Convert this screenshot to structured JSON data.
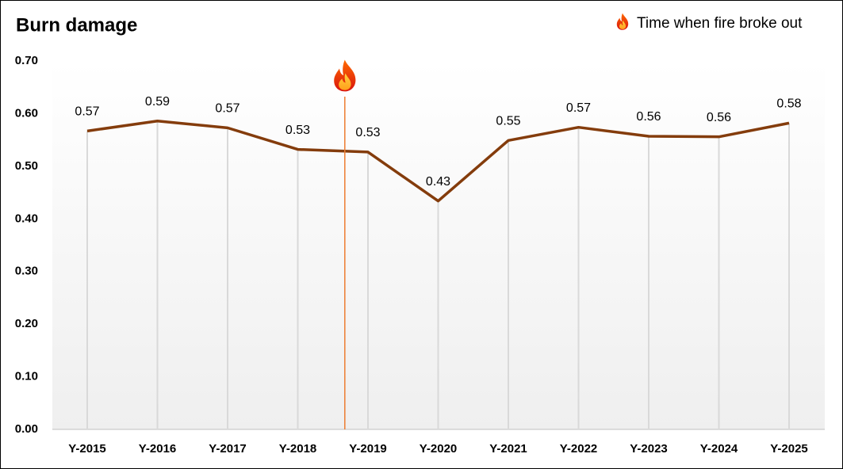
{
  "chart_data": {
    "type": "line",
    "title": "Burn damage",
    "categories": [
      "Y-2015",
      "Y-2016",
      "Y-2017",
      "Y-2018",
      "Y-2019",
      "Y-2020",
      "Y-2021",
      "Y-2022",
      "Y-2023",
      "Y-2024",
      "Y-2025"
    ],
    "values": [
      0.567,
      0.586,
      0.573,
      0.532,
      0.527,
      0.434,
      0.549,
      0.574,
      0.557,
      0.556,
      0.582
    ],
    "value_labels": [
      "0.57",
      "0.59",
      "0.57",
      "0.53",
      "0.53",
      "0.43",
      "0.55",
      "0.57",
      "0.56",
      "0.56",
      "0.58"
    ],
    "color": "#843c0c",
    "ylim": [
      0,
      0.7
    ],
    "yticks": [
      {
        "value": 0,
        "label": "0.00"
      },
      {
        "value": 0.1,
        "label": "0.10"
      },
      {
        "value": 0.2,
        "label": "0.20"
      },
      {
        "value": 0.3,
        "label": "0.30"
      },
      {
        "value": 0.4,
        "label": "0.40"
      },
      {
        "value": 0.5,
        "label": "0.50"
      },
      {
        "value": 0.6,
        "label": "0.60"
      },
      {
        "value": 0.7,
        "label": "0.70"
      }
    ],
    "fire_event": {
      "x": 3.67,
      "label": "Time when fire broke out",
      "color": "#ed7d31"
    }
  }
}
